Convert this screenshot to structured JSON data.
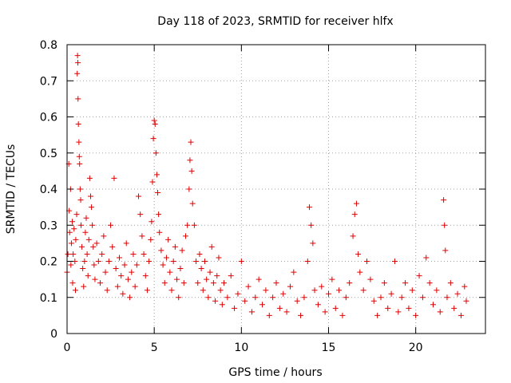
{
  "chart_data": {
    "type": "scatter",
    "title": "Day 118 of 2023, SRMTID for receiver hlfx",
    "xlabel": "GPS time / hours",
    "ylabel": "SRMTID / TECUs",
    "xlim": [
      0,
      24
    ],
    "ylim": [
      0,
      0.8
    ],
    "xticks": [
      0,
      5,
      10,
      15,
      20
    ],
    "xtick_labels": [
      "0",
      "5",
      "10",
      "15",
      "20"
    ],
    "yticks": [
      0,
      0.1,
      0.2,
      0.3,
      0.4,
      0.5,
      0.6,
      0.7,
      0.8
    ],
    "ytick_labels": [
      "0",
      "0.1",
      "0.2",
      "0.3",
      "0.4",
      "0.5",
      "0.6",
      "0.7",
      "0.8"
    ],
    "grid": true,
    "marker": "+",
    "color": "#e00000",
    "series": [
      {
        "name": "SRMTID",
        "points": [
          [
            0.0,
            0.17
          ],
          [
            0.05,
            0.22
          ],
          [
            0.1,
            0.47
          ],
          [
            0.12,
            0.34
          ],
          [
            0.15,
            0.28
          ],
          [
            0.2,
            0.4
          ],
          [
            0.22,
            0.19
          ],
          [
            0.25,
            0.25
          ],
          [
            0.3,
            0.31
          ],
          [
            0.32,
            0.14
          ],
          [
            0.35,
            0.22
          ],
          [
            0.4,
            0.29
          ],
          [
            0.45,
            0.2
          ],
          [
            0.48,
            0.12
          ],
          [
            0.5,
            0.26
          ],
          [
            0.55,
            0.33
          ],
          [
            0.58,
            0.72
          ],
          [
            0.6,
            0.77
          ],
          [
            0.62,
            0.75
          ],
          [
            0.63,
            0.65
          ],
          [
            0.65,
            0.58
          ],
          [
            0.68,
            0.53
          ],
          [
            0.7,
            0.49
          ],
          [
            0.72,
            0.47
          ],
          [
            0.75,
            0.4
          ],
          [
            0.78,
            0.37
          ],
          [
            0.8,
            0.3
          ],
          [
            0.85,
            0.24
          ],
          [
            0.9,
            0.18
          ],
          [
            0.95,
            0.13
          ],
          [
            1.0,
            0.2
          ],
          [
            1.05,
            0.28
          ],
          [
            1.1,
            0.32
          ],
          [
            1.15,
            0.22
          ],
          [
            1.2,
            0.16
          ],
          [
            1.25,
            0.26
          ],
          [
            1.3,
            0.43
          ],
          [
            1.35,
            0.38
          ],
          [
            1.4,
            0.35
          ],
          [
            1.45,
            0.3
          ],
          [
            1.5,
            0.24
          ],
          [
            1.55,
            0.19
          ],
          [
            1.6,
            0.15
          ],
          [
            1.7,
            0.25
          ],
          [
            1.8,
            0.2
          ],
          [
            1.9,
            0.14
          ],
          [
            2.0,
            0.22
          ],
          [
            2.1,
            0.27
          ],
          [
            2.2,
            0.17
          ],
          [
            2.3,
            0.12
          ],
          [
            2.4,
            0.2
          ],
          [
            2.5,
            0.3
          ],
          [
            2.6,
            0.24
          ],
          [
            2.7,
            0.43
          ],
          [
            2.8,
            0.18
          ],
          [
            2.9,
            0.13
          ],
          [
            3.0,
            0.21
          ],
          [
            3.1,
            0.16
          ],
          [
            3.2,
            0.11
          ],
          [
            3.3,
            0.19
          ],
          [
            3.4,
            0.25
          ],
          [
            3.5,
            0.15
          ],
          [
            3.6,
            0.1
          ],
          [
            3.7,
            0.17
          ],
          [
            3.8,
            0.22
          ],
          [
            3.9,
            0.13
          ],
          [
            4.0,
            0.19
          ],
          [
            4.1,
            0.38
          ],
          [
            4.2,
            0.33
          ],
          [
            4.3,
            0.27
          ],
          [
            4.4,
            0.22
          ],
          [
            4.5,
            0.16
          ],
          [
            4.6,
            0.12
          ],
          [
            4.7,
            0.2
          ],
          [
            4.8,
            0.26
          ],
          [
            4.85,
            0.31
          ],
          [
            4.9,
            0.42
          ],
          [
            4.95,
            0.54
          ],
          [
            5.0,
            0.59
          ],
          [
            5.05,
            0.58
          ],
          [
            5.1,
            0.5
          ],
          [
            5.15,
            0.44
          ],
          [
            5.2,
            0.39
          ],
          [
            5.25,
            0.33
          ],
          [
            5.3,
            0.28
          ],
          [
            5.4,
            0.23
          ],
          [
            5.5,
            0.19
          ],
          [
            5.6,
            0.14
          ],
          [
            5.7,
            0.21
          ],
          [
            5.8,
            0.26
          ],
          [
            5.9,
            0.17
          ],
          [
            6.0,
            0.12
          ],
          [
            6.1,
            0.2
          ],
          [
            6.2,
            0.24
          ],
          [
            6.3,
            0.15
          ],
          [
            6.4,
            0.1
          ],
          [
            6.5,
            0.18
          ],
          [
            6.6,
            0.23
          ],
          [
            6.7,
            0.14
          ],
          [
            6.8,
            0.27
          ],
          [
            6.9,
            0.3
          ],
          [
            7.0,
            0.4
          ],
          [
            7.05,
            0.48
          ],
          [
            7.1,
            0.53
          ],
          [
            7.15,
            0.45
          ],
          [
            7.2,
            0.36
          ],
          [
            7.3,
            0.3
          ],
          [
            7.4,
            0.2
          ],
          [
            7.5,
            0.14
          ],
          [
            7.6,
            0.22
          ],
          [
            7.7,
            0.18
          ],
          [
            7.8,
            0.12
          ],
          [
            7.9,
            0.2
          ],
          [
            8.0,
            0.15
          ],
          [
            8.1,
            0.1
          ],
          [
            8.2,
            0.17
          ],
          [
            8.3,
            0.24
          ],
          [
            8.4,
            0.14
          ],
          [
            8.5,
            0.09
          ],
          [
            8.6,
            0.16
          ],
          [
            8.7,
            0.21
          ],
          [
            8.8,
            0.12
          ],
          [
            8.9,
            0.08
          ],
          [
            9.0,
            0.14
          ],
          [
            9.2,
            0.1
          ],
          [
            9.4,
            0.16
          ],
          [
            9.6,
            0.07
          ],
          [
            9.8,
            0.11
          ],
          [
            10.0,
            0.2
          ],
          [
            10.2,
            0.09
          ],
          [
            10.4,
            0.13
          ],
          [
            10.6,
            0.06
          ],
          [
            10.8,
            0.1
          ],
          [
            11.0,
            0.15
          ],
          [
            11.2,
            0.08
          ],
          [
            11.4,
            0.12
          ],
          [
            11.6,
            0.05
          ],
          [
            11.8,
            0.1
          ],
          [
            12.0,
            0.14
          ],
          [
            12.2,
            0.07
          ],
          [
            12.4,
            0.11
          ],
          [
            12.6,
            0.06
          ],
          [
            12.8,
            0.13
          ],
          [
            13.0,
            0.17
          ],
          [
            13.2,
            0.09
          ],
          [
            13.4,
            0.05
          ],
          [
            13.6,
            0.1
          ],
          [
            13.8,
            0.2
          ],
          [
            13.9,
            0.35
          ],
          [
            14.0,
            0.3
          ],
          [
            14.1,
            0.25
          ],
          [
            14.2,
            0.12
          ],
          [
            14.4,
            0.08
          ],
          [
            14.6,
            0.13
          ],
          [
            14.8,
            0.06
          ],
          [
            15.0,
            0.11
          ],
          [
            15.2,
            0.15
          ],
          [
            15.4,
            0.07
          ],
          [
            15.6,
            0.12
          ],
          [
            15.8,
            0.05
          ],
          [
            16.0,
            0.1
          ],
          [
            16.2,
            0.14
          ],
          [
            16.4,
            0.27
          ],
          [
            16.5,
            0.33
          ],
          [
            16.6,
            0.36
          ],
          [
            16.7,
            0.22
          ],
          [
            16.8,
            0.17
          ],
          [
            17.0,
            0.12
          ],
          [
            17.2,
            0.2
          ],
          [
            17.4,
            0.15
          ],
          [
            17.6,
            0.09
          ],
          [
            17.8,
            0.05
          ],
          [
            18.0,
            0.1
          ],
          [
            18.2,
            0.14
          ],
          [
            18.4,
            0.07
          ],
          [
            18.6,
            0.11
          ],
          [
            18.8,
            0.2
          ],
          [
            19.0,
            0.06
          ],
          [
            19.2,
            0.1
          ],
          [
            19.4,
            0.14
          ],
          [
            19.6,
            0.07
          ],
          [
            19.8,
            0.12
          ],
          [
            20.0,
            0.05
          ],
          [
            20.2,
            0.16
          ],
          [
            20.4,
            0.1
          ],
          [
            20.6,
            0.21
          ],
          [
            20.8,
            0.14
          ],
          [
            21.0,
            0.08
          ],
          [
            21.2,
            0.12
          ],
          [
            21.4,
            0.06
          ],
          [
            21.6,
            0.37
          ],
          [
            21.65,
            0.3
          ],
          [
            21.7,
            0.23
          ],
          [
            21.8,
            0.1
          ],
          [
            22.0,
            0.14
          ],
          [
            22.2,
            0.07
          ],
          [
            22.4,
            0.11
          ],
          [
            22.6,
            0.05
          ],
          [
            22.8,
            0.13
          ],
          [
            22.9,
            0.09
          ]
        ]
      }
    ]
  }
}
